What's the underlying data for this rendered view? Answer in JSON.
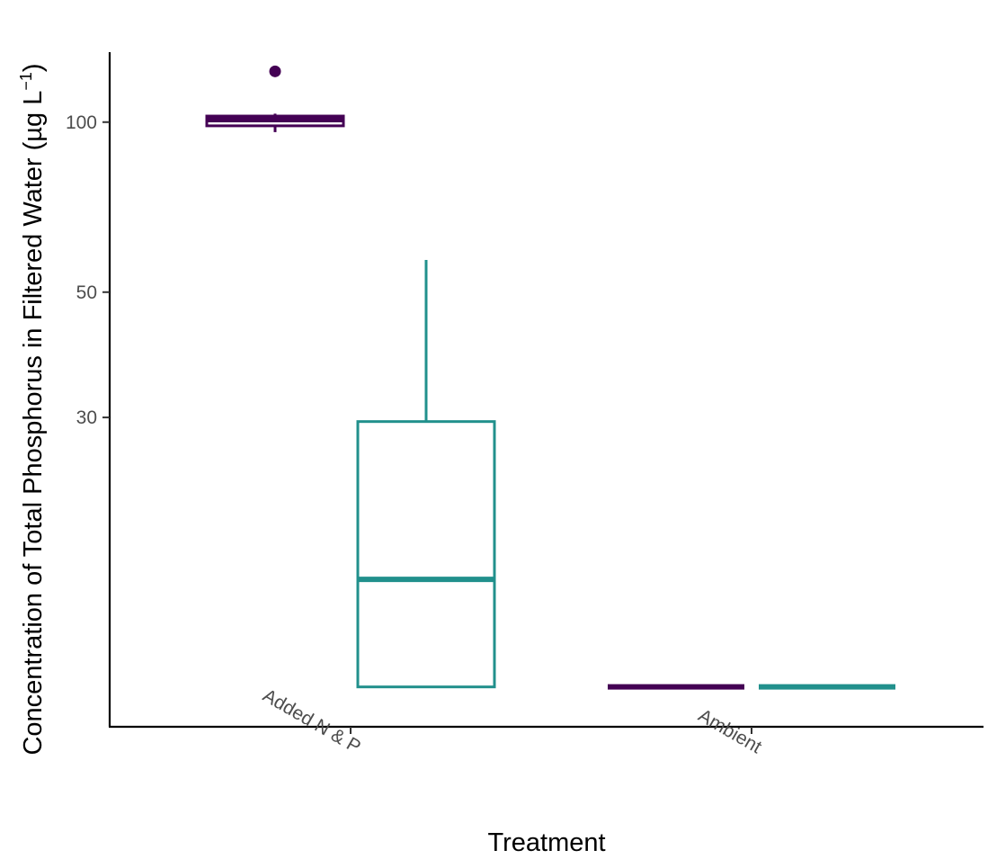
{
  "chart_data": {
    "type": "boxplot",
    "xlabel": "Treatment",
    "ylabel": "Concentration of Total Phosphorus in Filtered Water (µg L",
    "ylabel_sup": "−1",
    "ylabel_close": ")",
    "yscale": "log10",
    "ylim": [
      8.5,
      133
    ],
    "yticks": [
      30,
      50,
      100
    ],
    "categories": [
      "Added N & P",
      "Ambient"
    ],
    "colors": [
      "#440154",
      "#21908c"
    ],
    "groups": [
      {
        "category": "Added N & P",
        "boxes": [
          {
            "color": "#440154",
            "min": 96,
            "q1": 98.5,
            "median": 101,
            "q3": 102.5,
            "max": 103.5,
            "outliers": [
              123
            ]
          },
          {
            "color": "#21908c",
            "min": 10,
            "q1": 10,
            "median": 15.5,
            "q3": 29.5,
            "max": 57,
            "outliers": []
          }
        ]
      },
      {
        "category": "Ambient",
        "boxes": [
          {
            "color": "#440154",
            "min": 10,
            "q1": 10,
            "median": 10,
            "q3": 10,
            "max": 10,
            "outliers": []
          },
          {
            "color": "#21908c",
            "min": 10,
            "q1": 10,
            "median": 10,
            "q3": 10,
            "max": 10,
            "outliers": []
          }
        ]
      }
    ]
  }
}
